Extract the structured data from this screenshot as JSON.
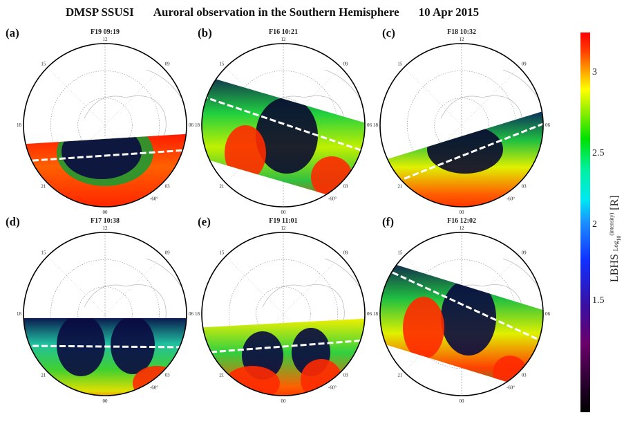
{
  "header": {
    "instrument": "DMSP SSUSI",
    "description": "Auroral observation in the Southern Hemisphere",
    "date": "10 Apr 2015"
  },
  "panels": [
    {
      "label": "(a)",
      "title": "F19 09:19"
    },
    {
      "label": "(b)",
      "title": "F16 10:21"
    },
    {
      "label": "(c)",
      "title": "F18 10:32"
    },
    {
      "label": "(d)",
      "title": "F17 10:38"
    },
    {
      "label": "(e)",
      "title": "F19 11:01"
    },
    {
      "label": "(f)",
      "title": "F16 12:02"
    }
  ],
  "mlt_ticks": {
    "top": "12",
    "upper_left": "15",
    "upper_right": "09",
    "left": "18",
    "right": "06",
    "lower_left": "21",
    "lower_right": "03",
    "bottom": "00",
    "latitude": "-60°"
  },
  "colorbar": {
    "label_main": "LBHS",
    "label_log": "Log",
    "label_sub": "10",
    "label_sup": "(intensity)",
    "label_unit": "[R]",
    "ticks": [
      "3",
      "2.5",
      "2",
      "1.5"
    ],
    "range": [
      0.8,
      3.25
    ]
  }
}
